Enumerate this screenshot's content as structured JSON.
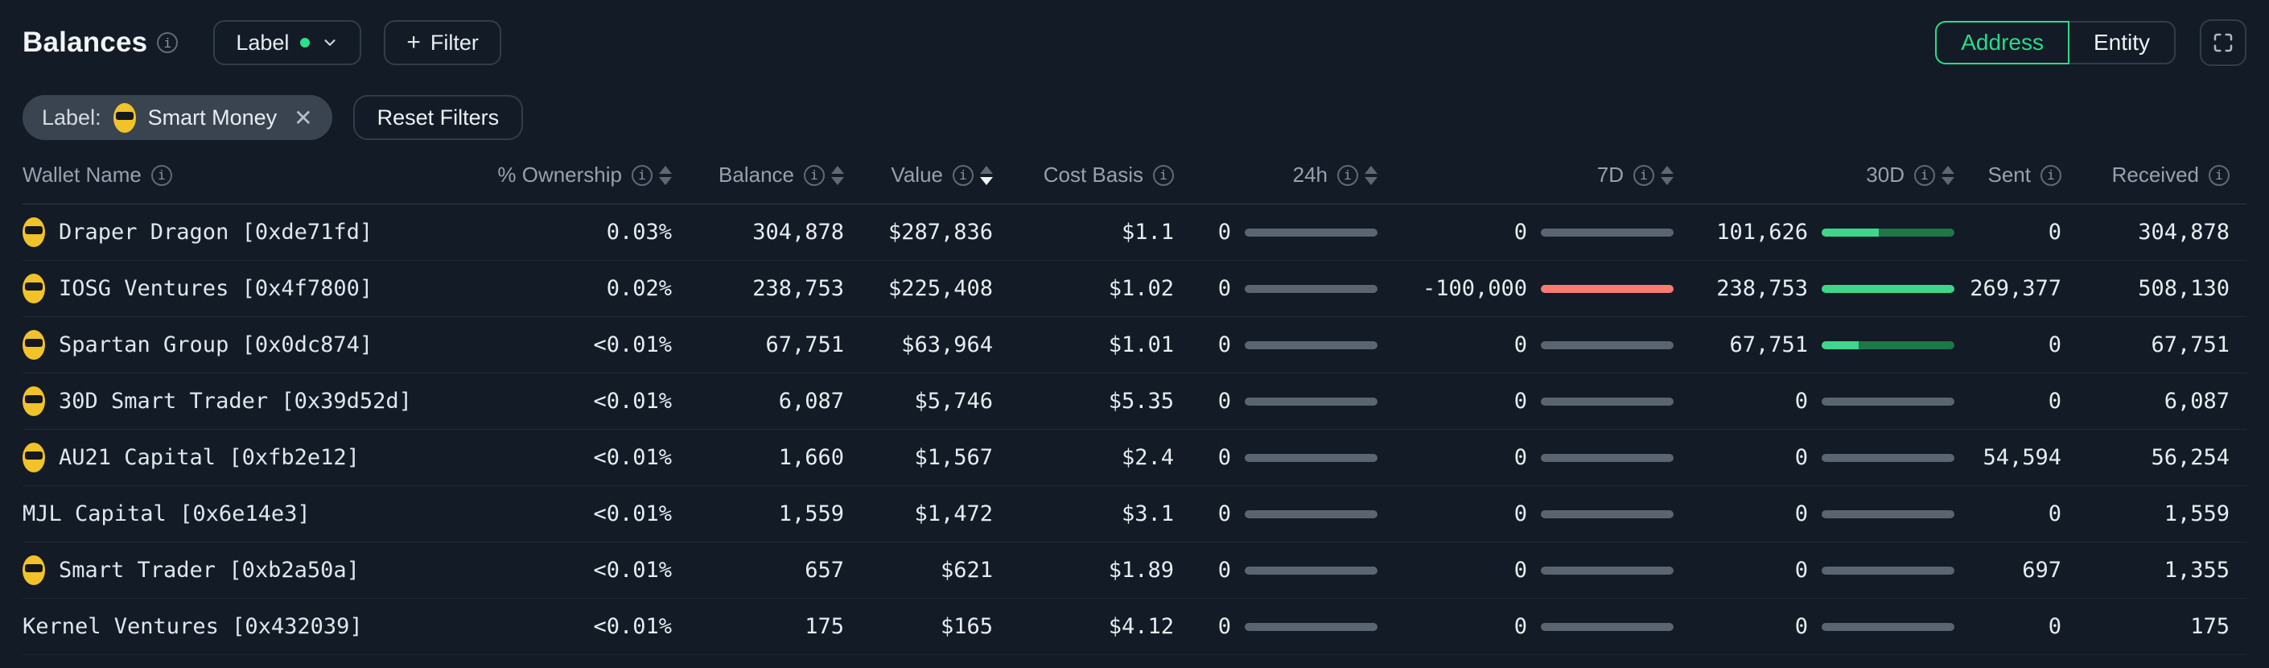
{
  "colors": {
    "background": "#131b26",
    "accent_green": "#2adb8b",
    "bar_green_fill": "#3dd68c",
    "bar_green_track": "#1d7747",
    "bar_red": "#f87b72",
    "bar_gray": "#5b6572"
  },
  "header": {
    "title": "Balances",
    "label_button": "Label",
    "filter_button_label": "Filter",
    "view_toggle": {
      "address": "Address",
      "entity": "Entity",
      "selected": "Address"
    }
  },
  "filters": {
    "chip_prefix": "Label:",
    "chip_value": "Smart Money",
    "reset_button": "Reset Filters"
  },
  "table": {
    "columns": [
      {
        "label": "Wallet Name",
        "info": true,
        "sort": "none",
        "align": "left"
      },
      {
        "label": "% Ownership",
        "info": true,
        "sort": "both"
      },
      {
        "label": "Balance",
        "info": true,
        "sort": "both"
      },
      {
        "label": "Value",
        "info": true,
        "sort": "desc"
      },
      {
        "label": "Cost Basis",
        "info": true,
        "sort": "none"
      },
      {
        "label": "24h",
        "info": true,
        "sort": "both",
        "bar": true
      },
      {
        "label": "7D",
        "info": true,
        "sort": "both",
        "bar": true
      },
      {
        "label": "30D",
        "info": true,
        "sort": "both",
        "bar": true
      },
      {
        "label": "Sent",
        "info": true,
        "sort": "none"
      },
      {
        "label": "Received",
        "info": true,
        "sort": "none"
      }
    ],
    "rows": [
      {
        "name": "Draper Dragon [0xde71fd]",
        "emoji": true,
        "ownership": "0.03%",
        "balance": "304,878",
        "value": "$287,836",
        "cost_basis": "$1.1",
        "h24": {
          "text": "0",
          "pct": 100,
          "palette": "gray"
        },
        "d7": {
          "text": "0",
          "pct": 100,
          "palette": "gray"
        },
        "d30": {
          "text": "101,626",
          "pct": 43,
          "palette": "green"
        },
        "sent": "0",
        "received": "304,878"
      },
      {
        "name": "IOSG Ventures [0x4f7800]",
        "emoji": true,
        "ownership": "0.02%",
        "balance": "238,753",
        "value": "$225,408",
        "cost_basis": "$1.02",
        "h24": {
          "text": "0",
          "pct": 100,
          "palette": "gray"
        },
        "d7": {
          "text": "-100,000",
          "pct": 100,
          "palette": "red"
        },
        "d30": {
          "text": "238,753",
          "pct": 100,
          "palette": "green"
        },
        "sent": "269,377",
        "received": "508,130"
      },
      {
        "name": "Spartan Group [0x0dc874]",
        "emoji": true,
        "ownership": "<0.01%",
        "balance": "67,751",
        "value": "$63,964",
        "cost_basis": "$1.01",
        "h24": {
          "text": "0",
          "pct": 100,
          "palette": "gray"
        },
        "d7": {
          "text": "0",
          "pct": 100,
          "palette": "gray"
        },
        "d30": {
          "text": "67,751",
          "pct": 28,
          "palette": "green"
        },
        "sent": "0",
        "received": "67,751"
      },
      {
        "name": "30D Smart Trader [0x39d52d]",
        "emoji": true,
        "ownership": "<0.01%",
        "balance": "6,087",
        "value": "$5,746",
        "cost_basis": "$5.35",
        "h24": {
          "text": "0",
          "pct": 100,
          "palette": "gray"
        },
        "d7": {
          "text": "0",
          "pct": 100,
          "palette": "gray"
        },
        "d30": {
          "text": "0",
          "pct": 100,
          "palette": "gray"
        },
        "sent": "0",
        "received": "6,087"
      },
      {
        "name": "AU21 Capital [0xfb2e12]",
        "emoji": true,
        "ownership": "<0.01%",
        "balance": "1,660",
        "value": "$1,567",
        "cost_basis": "$2.4",
        "h24": {
          "text": "0",
          "pct": 100,
          "palette": "gray"
        },
        "d7": {
          "text": "0",
          "pct": 100,
          "palette": "gray"
        },
        "d30": {
          "text": "0",
          "pct": 100,
          "palette": "gray"
        },
        "sent": "54,594",
        "received": "56,254"
      },
      {
        "name": "MJL Capital [0x6e14e3]",
        "emoji": false,
        "ownership": "<0.01%",
        "balance": "1,559",
        "value": "$1,472",
        "cost_basis": "$3.1",
        "h24": {
          "text": "0",
          "pct": 100,
          "palette": "gray"
        },
        "d7": {
          "text": "0",
          "pct": 100,
          "palette": "gray"
        },
        "d30": {
          "text": "0",
          "pct": 100,
          "palette": "gray"
        },
        "sent": "0",
        "received": "1,559"
      },
      {
        "name": "Smart Trader [0xb2a50a]",
        "emoji": true,
        "ownership": "<0.01%",
        "balance": "657",
        "value": "$621",
        "cost_basis": "$1.89",
        "h24": {
          "text": "0",
          "pct": 100,
          "palette": "gray"
        },
        "d7": {
          "text": "0",
          "pct": 100,
          "palette": "gray"
        },
        "d30": {
          "text": "0",
          "pct": 100,
          "palette": "gray"
        },
        "sent": "697",
        "received": "1,355"
      },
      {
        "name": "Kernel Ventures [0x432039]",
        "emoji": false,
        "ownership": "<0.01%",
        "balance": "175",
        "value": "$165",
        "cost_basis": "$4.12",
        "h24": {
          "text": "0",
          "pct": 100,
          "palette": "gray"
        },
        "d7": {
          "text": "0",
          "pct": 100,
          "palette": "gray"
        },
        "d30": {
          "text": "0",
          "pct": 100,
          "palette": "gray"
        },
        "sent": "0",
        "received": "175"
      }
    ]
  }
}
